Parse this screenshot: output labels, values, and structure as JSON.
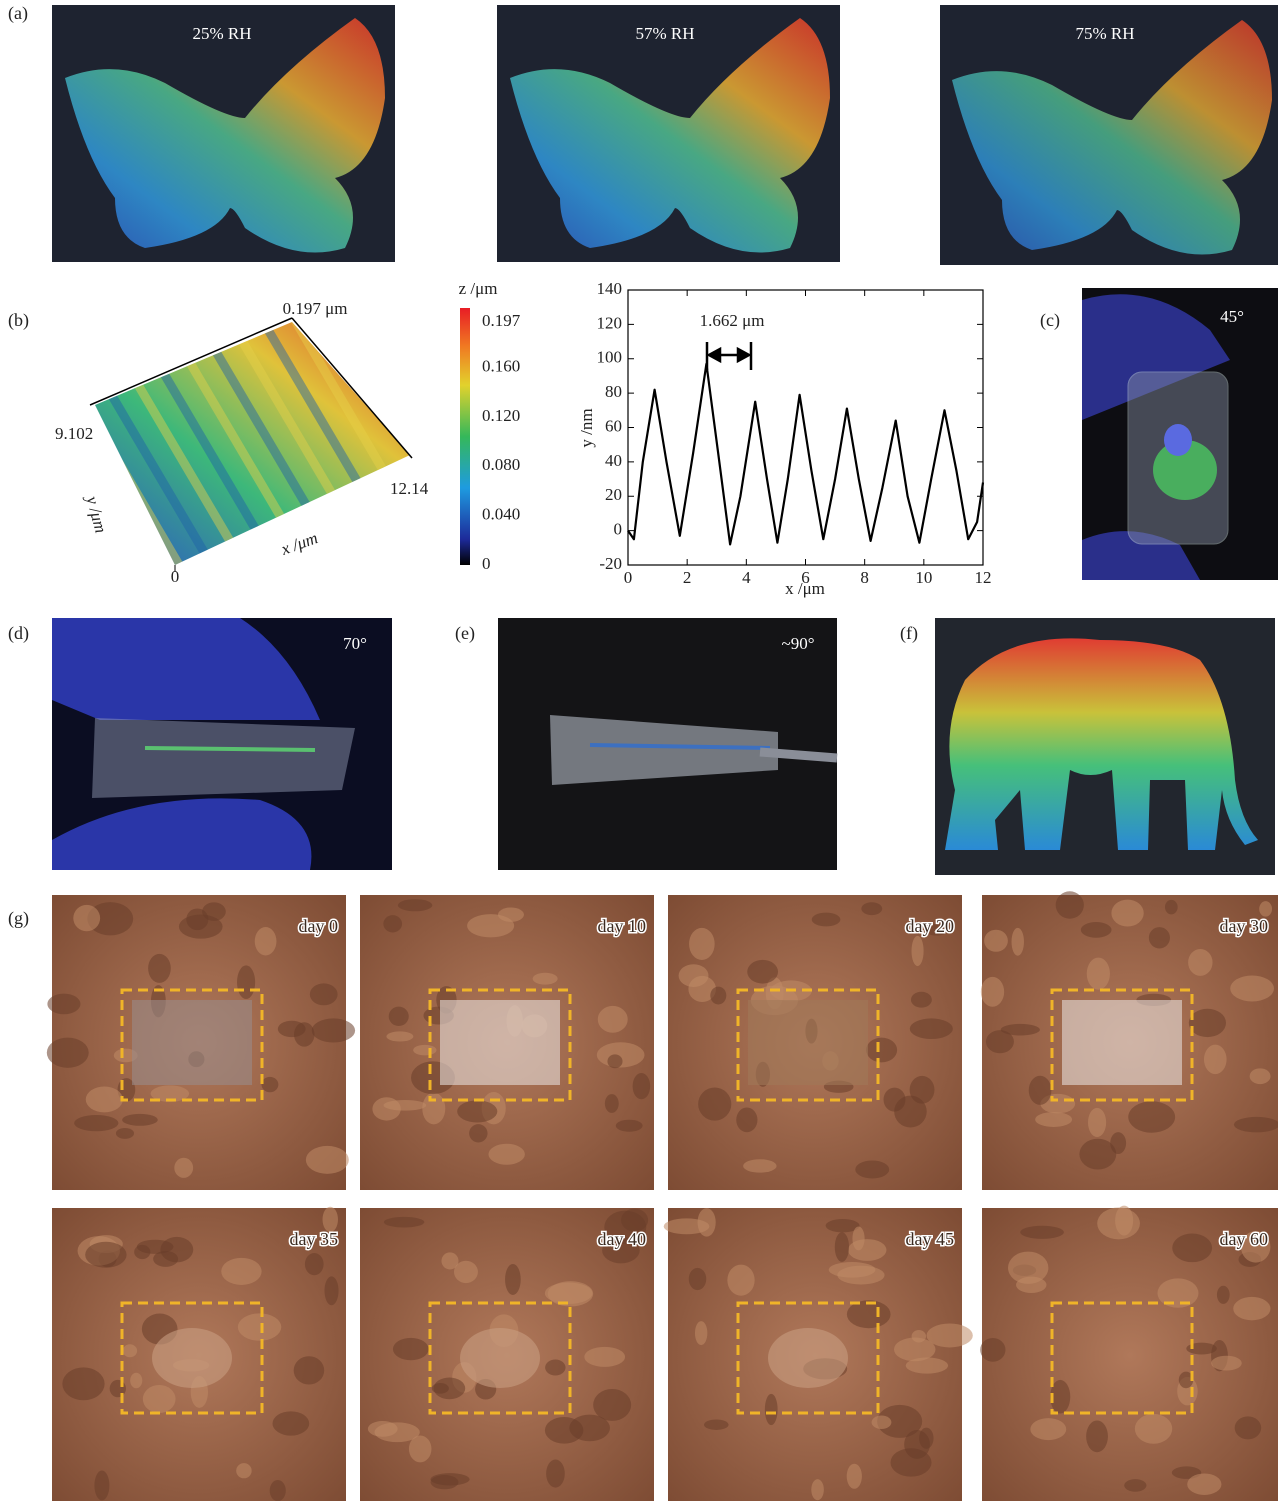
{
  "panel_labels": [
    "(a)",
    "(b)",
    "(c)",
    "(d)",
    "(e)",
    "(f)",
    "(g)"
  ],
  "humidity": [
    "25% RH",
    "57% RH",
    "75% RH"
  ],
  "surface": {
    "z_max_label": "0.197 μm",
    "y_max": "9.102",
    "x_max": "12.14",
    "origin": "0",
    "y_label": "y /μm",
    "x_label": "x /μm"
  },
  "colorbar": {
    "title": "z /μm",
    "zlim": [
      0,
      0.197
    ],
    "zticks": [
      0.197,
      {
        "value": 0.16,
        "label": "0.160"
      },
      {
        "value": 0.12,
        "label": "0.120"
      },
      {
        "value": 0.08,
        "label": "0.080"
      },
      {
        "value": 0.04,
        "label": "0.040"
      },
      0
    ]
  },
  "chart_data": {
    "type": "line",
    "x_label": "x /μm",
    "y_label": "y /nm",
    "annotation": "1.662 μm",
    "color": "#000000",
    "x": [
      0,
      0.2,
      0.5,
      0.9,
      1.3,
      1.75,
      2.2,
      2.65,
      3.05,
      3.45,
      3.8,
      4.3,
      4.7,
      5.05,
      5.4,
      5.8,
      6.2,
      6.6,
      7.0,
      7.4,
      7.8,
      8.2,
      8.6,
      9.05,
      9.45,
      9.85,
      10.25,
      10.7,
      11.1,
      11.5,
      11.8,
      12
    ],
    "values": [
      0,
      -5,
      40,
      82,
      40,
      -3,
      45,
      97,
      45,
      -8,
      20,
      75,
      30,
      -7,
      30,
      79,
      35,
      -5,
      30,
      71,
      30,
      -6,
      25,
      64,
      20,
      -7,
      30,
      70,
      35,
      -5,
      5,
      28
    ],
    "xlim": [
      0,
      12
    ],
    "ylim": [
      -20,
      140
    ],
    "xticks": [
      0,
      2,
      4,
      6,
      8,
      10,
      12
    ],
    "yticks": [
      -20,
      0,
      20,
      40,
      60,
      80,
      100,
      120,
      140
    ],
    "grid": false
  },
  "angles": [
    "45°",
    "70°",
    "~90°"
  ],
  "degradation": [
    "day 0",
    "day 10",
    "day 20",
    "day 30",
    "day 35",
    "day 40",
    "day 45",
    "day 60"
  ]
}
